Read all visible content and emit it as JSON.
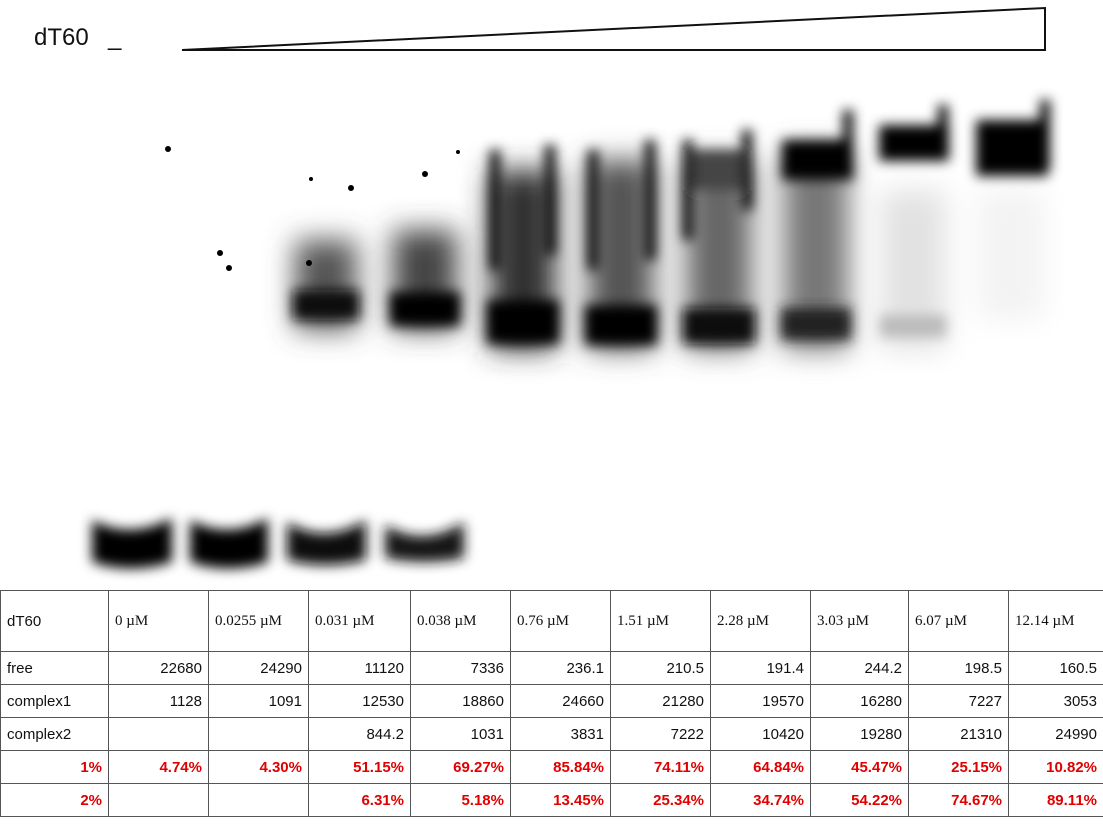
{
  "header": {
    "label": "dT60",
    "minus": "_"
  },
  "table": {
    "columns": [
      "dT60",
      "0 µM",
      "0.0255 µM",
      "0.031 µM",
      "0.038 µM",
      "0.76 µM",
      "1.51 µM",
      "2.28 µM",
      "3.03 µM",
      "6.07 µM",
      "12.14 µM"
    ],
    "rows": [
      [
        "free",
        "22680",
        "24290",
        "11120",
        "7336",
        "236.1",
        "210.5",
        "191.4",
        "244.2",
        "198.5",
        "160.5"
      ],
      [
        "complex1",
        "1128",
        "1091",
        "12530",
        "18860",
        "24660",
        "21280",
        "19570",
        "16280",
        "7227",
        "3053"
      ],
      [
        "complex2",
        null,
        null,
        "844.2",
        "1031",
        "3831",
        "7222",
        "10420",
        "19280",
        "21310",
        "24990"
      ],
      [
        "1%",
        "4.74%",
        "4.30%",
        "51.15%",
        "69.27%",
        "85.84%",
        "74.11%",
        "64.84%",
        "45.47%",
        "25.15%",
        "10.82%"
      ],
      [
        "2%",
        null,
        null,
        "6.31%",
        "5.18%",
        "13.45%",
        "25.34%",
        "34.74%",
        "54.22%",
        "74.67%",
        "89.11%"
      ]
    ]
  }
}
